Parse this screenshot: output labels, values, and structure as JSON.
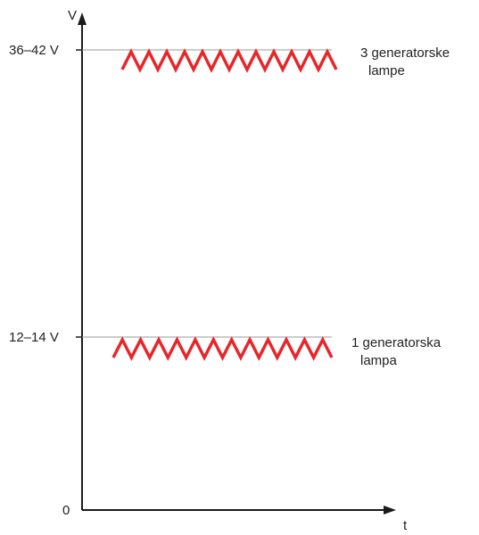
{
  "axes": {
    "y_label": "V",
    "x_label": "t",
    "origin_label": "0"
  },
  "levels": [
    {
      "voltage_label": "36–42 V",
      "caption_line1": "3 generatorske",
      "caption_line2": "lampe"
    },
    {
      "voltage_label": "12–14 V",
      "caption_line1": "1 generatorska",
      "caption_line2": "lampa"
    }
  ],
  "colors": {
    "axis": "#1a1a1a",
    "guide": "#9a9a9a",
    "zigzag": "#e8262a",
    "text": "#222222"
  },
  "icons": {
    "y_arrow": "arrow-up-icon",
    "x_arrow": "arrow-right-icon"
  }
}
